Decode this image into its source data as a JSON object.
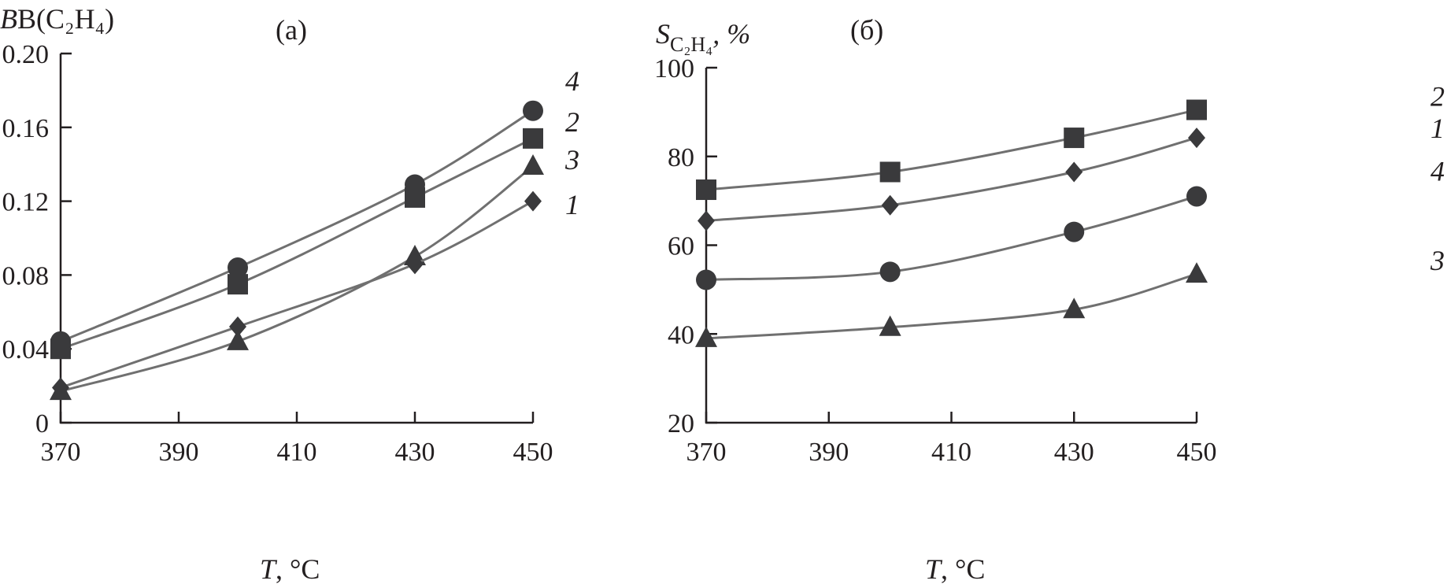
{
  "chart_data": [
    {
      "type": "line",
      "title": "(a)",
      "ylabel": "B(C₂H₄)",
      "xlabel_var": "T",
      "xlabel_unit": ", °C",
      "xlim": [
        370,
        450
      ],
      "ylim": [
        0,
        0.2
      ],
      "xticks": [
        "370",
        "390",
        "410",
        "430",
        "450"
      ],
      "yticks": [
        "0",
        "0.04",
        "0.08",
        "0.12",
        "0.16",
        "0.20"
      ],
      "x": [
        370,
        400,
        430,
        450
      ],
      "series": [
        {
          "name": "4",
          "marker": "circle",
          "values": [
            0.044,
            0.084,
            0.129,
            0.169
          ]
        },
        {
          "name": "2",
          "marker": "square",
          "values": [
            0.04,
            0.075,
            0.122,
            0.154
          ]
        },
        {
          "name": "3",
          "marker": "triangle",
          "values": [
            0.017,
            0.044,
            0.09,
            0.139
          ]
        },
        {
          "name": "1",
          "marker": "diamond",
          "values": [
            0.019,
            0.052,
            0.086,
            0.12
          ]
        }
      ],
      "grid": false
    },
    {
      "type": "line",
      "title": "(б)",
      "ylabel_main": "S",
      "ylabel_sub": "C₂H₄",
      "ylabel_suffix": ", %",
      "xlabel_var": "T",
      "xlabel_unit": ", °C",
      "xlim": [
        370,
        450
      ],
      "ylim": [
        20,
        100
      ],
      "xticks": [
        "370",
        "390",
        "410",
        "430",
        "450"
      ],
      "yticks": [
        "20",
        "40",
        "60",
        "80",
        "100"
      ],
      "x": [
        370,
        400,
        430,
        450
      ],
      "series": [
        {
          "name": "2",
          "marker": "square",
          "values": [
            72.5,
            76.5,
            84.2,
            90.5
          ]
        },
        {
          "name": "1",
          "marker": "diamond",
          "values": [
            65.5,
            69.0,
            76.5,
            84.2
          ]
        },
        {
          "name": "4",
          "marker": "circle",
          "values": [
            52.2,
            54.0,
            63.0,
            71.0
          ]
        },
        {
          "name": "3",
          "marker": "triangle",
          "values": [
            39.0,
            41.5,
            45.5,
            53.5
          ]
        }
      ],
      "grid": false
    }
  ]
}
